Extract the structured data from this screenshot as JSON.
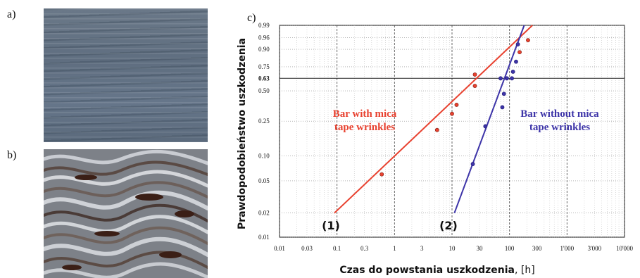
{
  "panels": {
    "a": "a)",
    "b": "b)",
    "c": "c)"
  },
  "chart_data": {
    "type": "scatter",
    "title": "",
    "xlabel": "Czas do powstania uszkodzenia",
    "xlabel_unit": ", [h]",
    "ylabel": "Prawdopodobieństwo uszkodzenia",
    "x_scale": "log",
    "y_scale": "weibull",
    "xlim": [
      0.01,
      10000
    ],
    "ylim": [
      0.01,
      0.99
    ],
    "grid": true,
    "x_ticks": [
      0.01,
      0.03,
      0.1,
      0.3,
      1,
      3,
      10,
      30,
      100,
      300,
      1000,
      3000,
      10000
    ],
    "x_tick_labels": [
      "0.01",
      "0.03",
      "0.1",
      "0.3",
      "1",
      "3",
      "10",
      "30",
      "100",
      "300",
      "1'000",
      "3'000",
      "10'000"
    ],
    "y_ticks": [
      0.01,
      0.02,
      0.05,
      0.1,
      0.25,
      0.5,
      0.63,
      0.75,
      0.9,
      0.96,
      0.99
    ],
    "y_tick_labels": [
      "0.01",
      "0.02",
      "0.05",
      "0.10",
      "0.25",
      "0.50",
      "0.63",
      "0.75",
      "0.90",
      "0.96",
      "0.99"
    ],
    "reference_line_y": 0.63,
    "series": [
      {
        "name": "Bar with mica tape wrinkles",
        "label_lines": [
          "Bar with mica",
          "tape wrinkles"
        ],
        "line_label": "(1)",
        "color": "#e8412f",
        "points": [
          {
            "x": 0.6,
            "y": 0.06
          },
          {
            "x": 5.5,
            "y": 0.2
          },
          {
            "x": 10,
            "y": 0.3
          },
          {
            "x": 12,
            "y": 0.37
          },
          {
            "x": 25,
            "y": 0.55
          },
          {
            "x": 25,
            "y": 0.67
          },
          {
            "x": 150,
            "y": 0.88
          },
          {
            "x": 210,
            "y": 0.95
          }
        ],
        "fit_line": [
          {
            "x": 0.09,
            "y": 0.02
          },
          {
            "x": 250,
            "y": 0.99
          }
        ]
      },
      {
        "name": "Bar without mica tape wrinkles",
        "label_lines": [
          "Bar without mica",
          "tape wrinkles"
        ],
        "line_label": "(2)",
        "color": "#3d34a8",
        "points": [
          {
            "x": 23,
            "y": 0.08
          },
          {
            "x": 38,
            "y": 0.22
          },
          {
            "x": 75,
            "y": 0.35
          },
          {
            "x": 80,
            "y": 0.47
          },
          {
            "x": 70,
            "y": 0.63
          },
          {
            "x": 90,
            "y": 0.63
          },
          {
            "x": 110,
            "y": 0.63
          },
          {
            "x": 115,
            "y": 0.7
          },
          {
            "x": 130,
            "y": 0.8
          },
          {
            "x": 140,
            "y": 0.93
          }
        ],
        "fit_line": [
          {
            "x": 11,
            "y": 0.02
          },
          {
            "x": 180,
            "y": 0.99
          }
        ]
      }
    ]
  }
}
